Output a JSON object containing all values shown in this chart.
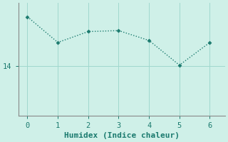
{
  "x": [
    0,
    1,
    2,
    3,
    4,
    5,
    6
  ],
  "y": [
    16.5,
    15.2,
    15.75,
    15.8,
    15.3,
    14.05,
    15.2
  ],
  "line_color": "#1a7a6e",
  "marker": "D",
  "markersize": 2.5,
  "linewidth": 1.0,
  "linestyle": "dotted",
  "xlabel": "Humidex (Indice chaleur)",
  "xlabel_fontsize": 8,
  "background_color": "#cff0e8",
  "grid_color": "#a0d8ce",
  "spine_color": "#888888",
  "tick_color": "#1a7a6e",
  "label_color": "#1a7a6e",
  "ytick_labels": [
    "14"
  ],
  "ytick_values": [
    14
  ],
  "xtick_values": [
    0,
    1,
    2,
    3,
    4,
    5,
    6
  ],
  "ylim": [
    11.5,
    17.2
  ],
  "xlim": [
    -0.3,
    6.5
  ]
}
